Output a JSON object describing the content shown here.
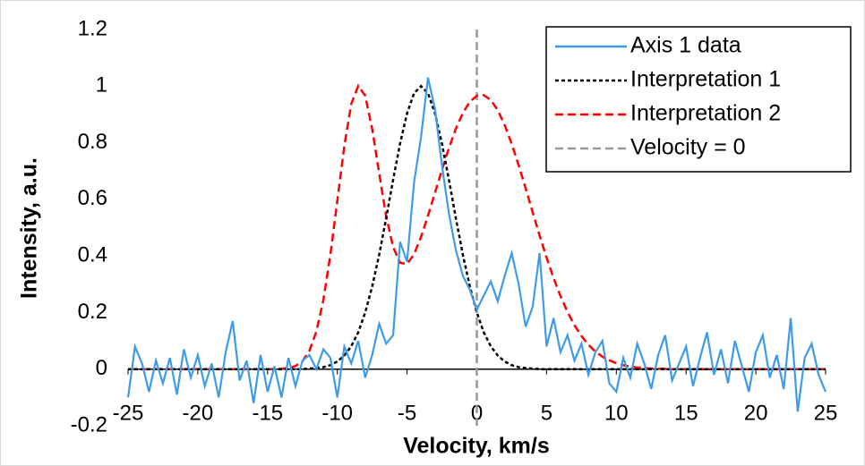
{
  "chart_data": {
    "type": "line",
    "x_label": "Velocity, km/s",
    "y_label": "Intensity, a.u.",
    "xlim": [
      -25,
      25
    ],
    "ylim": [
      -0.2,
      1.2
    ],
    "xticks": [
      -25,
      -20,
      -15,
      -10,
      -5,
      0,
      5,
      10,
      15,
      20,
      25
    ],
    "yticks": [
      -0.2,
      0,
      0.2,
      0.4,
      0.6,
      0.8,
      1,
      1.2
    ],
    "grid": false,
    "legend": "upper right",
    "x": [
      -25,
      -24.5,
      -24,
      -23.5,
      -23,
      -22.5,
      -22,
      -21.5,
      -21,
      -20.5,
      -20,
      -19.5,
      -19,
      -18.5,
      -18,
      -17.5,
      -17,
      -16.5,
      -16,
      -15.5,
      -15,
      -14.5,
      -14,
      -13.5,
      -13,
      -12.5,
      -12,
      -11.5,
      -11,
      -10.5,
      -10,
      -9.5,
      -9,
      -8.5,
      -8,
      -7.5,
      -7,
      -6.5,
      -6,
      -5.5,
      -5,
      -4.5,
      -4,
      -3.5,
      -3,
      -2.5,
      -2,
      -1.5,
      -1,
      -0.5,
      0,
      0.5,
      1,
      1.5,
      2,
      2.5,
      3,
      3.5,
      4,
      4.5,
      5,
      5.5,
      6,
      6.5,
      7,
      7.5,
      8,
      8.5,
      9,
      9.5,
      10,
      10.5,
      11,
      11.5,
      12,
      12.5,
      13,
      13.5,
      14,
      14.5,
      15,
      15.5,
      16,
      16.5,
      17,
      17.5,
      18,
      18.5,
      19,
      19.5,
      20,
      20.5,
      21,
      21.5,
      22,
      22.5,
      23,
      23.5,
      24,
      24.5,
      25
    ],
    "series": [
      {
        "name": "Axis 1 data",
        "color": "#3d9be9",
        "linestyle": "solid",
        "values": [
          -0.1,
          0.08,
          0.02,
          -0.08,
          0.03,
          -0.05,
          0.04,
          -0.09,
          0.07,
          -0.03,
          0.05,
          -0.06,
          0.02,
          -0.1,
          0.06,
          0.17,
          -0.04,
          0.03,
          -0.12,
          0.05,
          -0.08,
          0.01,
          -0.1,
          0.04,
          -0.06,
          0.03,
          0.05,
          0,
          0.07,
          0.04,
          -0.1,
          0.08,
          0.02,
          0.1,
          -0.03,
          0.05,
          0.16,
          0.09,
          0.12,
          0.45,
          0.38,
          0.66,
          0.82,
          1.03,
          0.92,
          0.72,
          0.55,
          0.42,
          0.33,
          0.28,
          0.21,
          0.26,
          0.31,
          0.24,
          0.33,
          0.41,
          0.3,
          0.15,
          0.22,
          0.41,
          0.08,
          0.18,
          0.06,
          0.12,
          0.03,
          0.09,
          -0.02,
          0.06,
          0.1,
          -0.05,
          -0.08,
          0.04,
          -0.03,
          0.09,
          0.02,
          -0.07,
          0.05,
          0.12,
          -0.04,
          0.02,
          0.08,
          -0.06,
          0.04,
          0.13,
          -0.02,
          0.07,
          -0.05,
          0.1,
          0.01,
          -0.08,
          0.06,
          0.12,
          -0.03,
          0.05,
          -0.07,
          0.18,
          -0.15,
          0.04,
          0.09,
          -0.02,
          -0.08
        ]
      },
      {
        "name": "Interpretation 1",
        "color": "#000000",
        "linestyle": "dotted",
        "values": [
          0,
          0,
          0,
          0,
          0,
          0,
          0,
          0,
          0,
          0,
          0,
          0,
          0,
          0,
          0,
          0,
          0,
          0,
          0,
          0,
          0,
          0,
          0,
          0,
          0,
          0,
          0.002,
          0.004,
          0.007,
          0.014,
          0.027,
          0.048,
          0.081,
          0.13,
          0.2,
          0.292,
          0.404,
          0.533,
          0.669,
          0.797,
          0.904,
          0.975,
          1,
          0.975,
          0.904,
          0.797,
          0.669,
          0.533,
          0.404,
          0.292,
          0.2,
          0.13,
          0.081,
          0.048,
          0.027,
          0.014,
          0.007,
          0.004,
          0.002,
          0,
          0,
          0,
          0,
          0,
          0,
          0,
          0,
          0,
          0,
          0,
          0,
          0,
          0,
          0,
          0,
          0,
          0,
          0,
          0,
          0,
          0,
          0,
          0,
          0,
          0,
          0,
          0,
          0,
          0,
          0,
          0,
          0,
          0,
          0,
          0,
          0,
          0,
          0,
          0,
          0,
          0
        ]
      },
      {
        "name": "Interpretation 2",
        "color": "#ff0000",
        "linestyle": "dashed",
        "values": [
          0,
          0,
          0,
          0,
          0,
          0,
          0,
          0,
          0,
          0,
          0,
          0,
          0,
          0,
          0,
          0,
          0,
          0,
          0,
          0,
          0,
          0,
          0.001,
          0.004,
          0.011,
          0.028,
          0.065,
          0.133,
          0.244,
          0.403,
          0.595,
          0.788,
          0.937,
          1.001,
          0.966,
          0.849,
          0.692,
          0.541,
          0.431,
          0.376,
          0.371,
          0.406,
          0.467,
          0.542,
          0.623,
          0.704,
          0.781,
          0.85,
          0.905,
          0.945,
          0.966,
          0.968,
          0.951,
          0.915,
          0.862,
          0.796,
          0.72,
          0.639,
          0.555,
          0.472,
          0.394,
          0.322,
          0.258,
          0.202,
          0.155,
          0.117,
          0.086,
          0.062,
          0.044,
          0.031,
          0.021,
          0.014,
          0.009,
          0.006,
          0.004,
          0.002,
          0.001,
          0.001,
          0,
          0,
          0,
          0,
          0,
          0,
          0,
          0,
          0,
          0,
          0,
          0,
          0,
          0,
          0,
          0,
          0,
          0,
          0,
          0,
          0,
          0,
          0
        ]
      },
      {
        "name": "Velocity = 0",
        "color": "#999999",
        "linestyle": "dashed",
        "x": [
          0,
          0
        ],
        "values": [
          -0.2,
          1.2
        ]
      }
    ]
  }
}
